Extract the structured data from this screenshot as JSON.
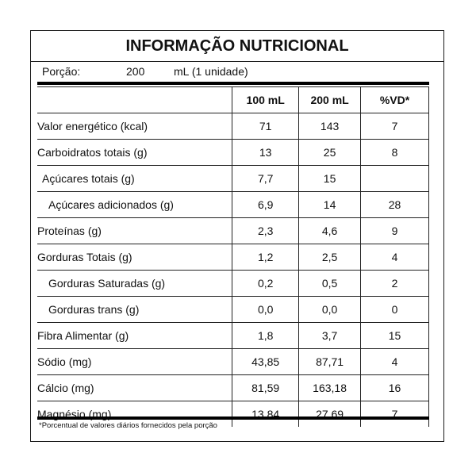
{
  "title": "INFORMAÇÃO NUTRICIONAL",
  "portion": {
    "label": "Porção:",
    "amount": "200",
    "unit": "mL (1 unidade)"
  },
  "headers": {
    "blank": "",
    "col100": "100 mL",
    "col200": "200 mL",
    "vd": "%VD*"
  },
  "rows": [
    {
      "name": "Valor energético (kcal)",
      "v100": "71",
      "v200": "143",
      "vd": "7"
    },
    {
      "name": "Carboidratos totais (g)",
      "v100": "13",
      "v200": "25",
      "vd": "8"
    },
    {
      "name": "Açúcares totais (g)",
      "v100": "7,7",
      "v200": "15",
      "vd": ""
    },
    {
      "name": "Açúcares adicionados (g)",
      "v100": "6,9",
      "v200": "14",
      "vd": "28"
    },
    {
      "name": "Proteínas (g)",
      "v100": "2,3",
      "v200": "4,6",
      "vd": "9"
    },
    {
      "name": "Gorduras Totais (g)",
      "v100": "1,2",
      "v200": "2,5",
      "vd": "4"
    },
    {
      "name": "Gorduras Saturadas (g)",
      "v100": "0,2",
      "v200": "0,5",
      "vd": "2"
    },
    {
      "name": "Gorduras trans (g)",
      "v100": "0,0",
      "v200": "0,0",
      "vd": "0"
    },
    {
      "name": "Fibra Alimentar (g)",
      "v100": "1,8",
      "v200": "3,7",
      "vd": "15"
    },
    {
      "name": "Sódio (mg)",
      "v100": "43,85",
      "v200": "87,71",
      "vd": "4"
    },
    {
      "name": "Cálcio (mg)",
      "v100": "81,59",
      "v200": "163,18",
      "vd": "16"
    },
    {
      "name": "Magnésio (mg)",
      "v100": "13,84",
      "v200": "27,69",
      "vd": "7"
    }
  ],
  "footnote": "*Porcentual de valores diários fornecidos pela porção"
}
